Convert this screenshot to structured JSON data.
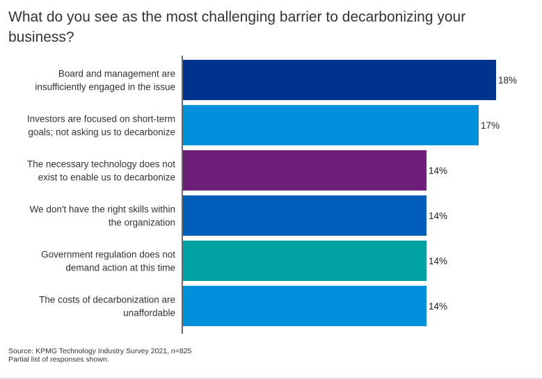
{
  "chart_data": {
    "type": "bar",
    "orientation": "horizontal",
    "title": "What do you see as the most challenging barrier to decarbonizing your business?",
    "categories": [
      [
        "Board and management are",
        "insufficiently engaged in the issue"
      ],
      [
        "Investors are focused on short-term",
        "goals; not asking us to decarbonize"
      ],
      [
        "The necessary technology does not",
        "exist to enable us to decarbonize"
      ],
      [
        "We don't have the right skills within",
        "the organization"
      ],
      [
        "Government regulation does not",
        "demand action at this time"
      ],
      [
        "The costs of decarbonization are",
        "unaffordable"
      ]
    ],
    "values": [
      18,
      17,
      14,
      14,
      14,
      14
    ],
    "value_labels": [
      "18%",
      "17%",
      "14%",
      "14%",
      "14%",
      "14%"
    ],
    "xlim": [
      0,
      18.2
    ],
    "colors": [
      "#00338d",
      "#0091da",
      "#6d2077",
      "#005eb8",
      "#00a3a1",
      "#0091da"
    ],
    "grid": false,
    "legend": "none"
  },
  "footer": {
    "source": "Source: KPMG Technology Industry Survey 2021, n=825",
    "note": "Partial list of responses shown."
  }
}
